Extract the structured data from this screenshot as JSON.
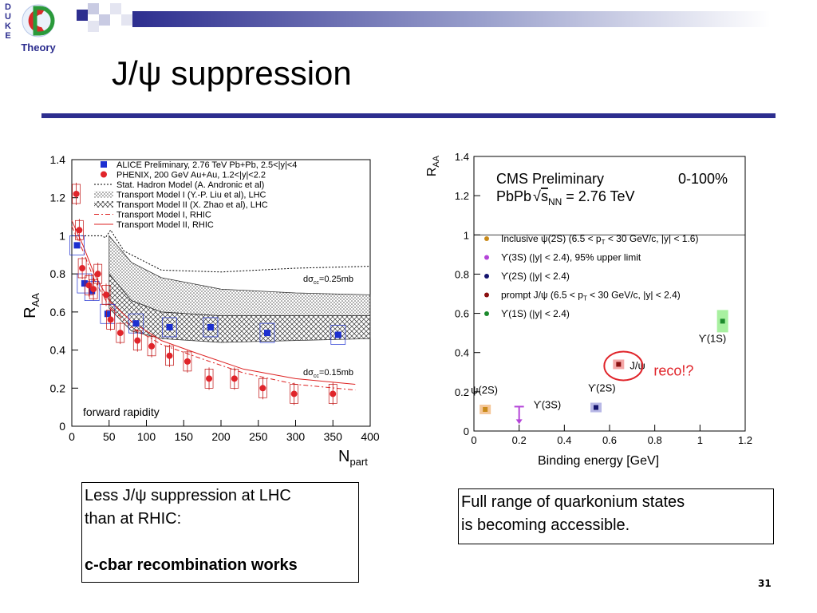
{
  "slide": {
    "logo_letters": [
      "D",
      "U",
      "K",
      "E"
    ],
    "logo_text": "Theory",
    "title": "J/ψ suppression",
    "page_number": "31",
    "accent_color": "#2d2e8f"
  },
  "left_box": {
    "line1": "Less J/ψ suppression at LHC",
    "line2": "than at RHIC:",
    "line3": "c-cbar recombination works"
  },
  "right_box": {
    "line1": "Full range of quarkonium states",
    "line2": "is becoming accessible."
  },
  "chart_data": [
    {
      "type": "scatter",
      "xlabel": "N",
      "xlabel_sub": "part",
      "ylabel": "R",
      "ylabel_sub": "AA",
      "xlim": [
        0,
        400
      ],
      "ylim": [
        0,
        1.4
      ],
      "xticks": [
        "0",
        "50",
        "100",
        "150",
        "200",
        "250",
        "300",
        "350",
        "400"
      ],
      "yticks": [
        "0",
        "0.2",
        "0.4",
        "0.6",
        "0.8",
        "1",
        "1.2",
        "1.4"
      ],
      "legend": [
        "ALICE Preliminary, 2.76 TeV Pb+Pb, 2.5<|y|<4",
        "PHENIX, 200 GeV Au+Au, 1.2<|y|<2.2",
        "Stat. Hadron Model (A. Andronic et al)",
        "Transport Model I (Y.-P. Liu et al), LHC",
        "Transport Model II (X. Zhao et al), LHC",
        "Transport Model I, RHIC",
        "Transport Model II, RHIC"
      ],
      "annotations": {
        "upper": "dσ",
        "upper_sub": "cc",
        "upper_value": "=0.25mb",
        "lower": "dσ",
        "lower_sub": "cc",
        "lower_value": "=0.15mb",
        "bottom": "forward rapidity"
      },
      "series": [
        {
          "name": "ALICE Preliminary, 2.76 TeV Pb+Pb, 2.5<|y|<4",
          "color": "#1c2fd0",
          "x": [
            7,
            17,
            27,
            48,
            86,
            131,
            186,
            262,
            357
          ],
          "y": [
            0.95,
            0.75,
            0.71,
            0.59,
            0.54,
            0.52,
            0.52,
            0.49,
            0.48
          ]
        },
        {
          "name": "PHENIX, 200 GeV Au+Au, 1.2<|y|<2.2",
          "color": "#e0242a",
          "x": [
            6,
            10,
            14,
            23,
            29,
            35,
            46,
            52,
            65,
            88,
            107,
            131,
            155,
            184,
            218,
            256,
            298,
            350
          ],
          "y": [
            1.22,
            1.03,
            0.83,
            0.74,
            0.72,
            0.8,
            0.69,
            0.56,
            0.49,
            0.45,
            0.42,
            0.37,
            0.34,
            0.25,
            0.25,
            0.2,
            0.17,
            0.17
          ]
        },
        {
          "name": "Stat. Hadron Model (A. Andronic et al)",
          "x": [
            0,
            20,
            40,
            45,
            52,
            70,
            120,
            200,
            300,
            400
          ],
          "y": [
            1.0,
            1.0,
            1.0,
            0.99,
            1.03,
            0.92,
            0.82,
            0.81,
            0.83,
            0.84
          ]
        },
        {
          "name": "Transport Model II, RHIC",
          "x": [
            0,
            15,
            30,
            50,
            80,
            120,
            170,
            230,
            300,
            380
          ],
          "y": [
            1.08,
            0.95,
            0.8,
            0.66,
            0.55,
            0.45,
            0.38,
            0.3,
            0.25,
            0.22
          ]
        },
        {
          "name": "Transport Model I, RHIC",
          "x": [
            0,
            15,
            30,
            50,
            80,
            120,
            170,
            230,
            300,
            380
          ],
          "y": [
            1.05,
            0.92,
            0.77,
            0.63,
            0.52,
            0.43,
            0.36,
            0.28,
            0.22,
            0.19
          ]
        }
      ]
    },
    {
      "type": "scatter",
      "title": "CMS Preliminary",
      "title_right": "0-100%",
      "subtitle": "PbPb",
      "subtitle_sqrt": "s",
      "subtitle_sub": "NN",
      "subtitle_value": " = 2.76 TeV",
      "xlabel": "Binding energy [GeV]",
      "ylabel": "R",
      "ylabel_sub": "AA",
      "xlim": [
        0,
        1.2
      ],
      "ylim": [
        0,
        1.4
      ],
      "xticks": [
        "0",
        "0.2",
        "0.4",
        "0.6",
        "0.8",
        "1",
        "1.2"
      ],
      "yticks": [
        "0",
        "0.2",
        "0.4",
        "0.6",
        "0.8",
        "1",
        "1.2",
        "1.4"
      ],
      "legend": [
        {
          "text": "Inclusive ψ(2S) (6.5 < p",
          "sub": "T",
          "tail": " < 30 GeV/c, |y| < 1.6)",
          "color": "#c98a1a"
        },
        {
          "text": "ϒ(3S) (|y| < 2.4), 95% upper limit",
          "sub": "",
          "tail": "",
          "color": "#b444d8"
        },
        {
          "text": "ϒ(2S) (|y| < 2.4)",
          "sub": "",
          "tail": "",
          "color": "#14146e"
        },
        {
          "text": "prompt J/ψ (6.5 < p",
          "sub": "T",
          "tail": " < 30 GeV/c, |y| < 2.4)",
          "color": "#8b1010"
        },
        {
          "text": "ϒ(1S) (|y| < 2.4)",
          "sub": "",
          "tail": "",
          "color": "#1d8a2d"
        }
      ],
      "point_labels": [
        "ψ(2S)",
        "ϒ(3S)",
        "ϒ(2S)",
        "J/ψ",
        "ϒ(1S)"
      ],
      "annotation": "reco!?",
      "annotation_color": "#e0242a",
      "points": [
        {
          "x": 0.05,
          "y": 0.11,
          "color": "#c98a1a",
          "shade": "#f5c79a"
        },
        {
          "x": 0.2,
          "y": 0.1,
          "color": "#b444d8",
          "shade": "#e6b8f5"
        },
        {
          "x": 0.54,
          "y": 0.12,
          "color": "#14146e",
          "shade": "#b8b8e6"
        },
        {
          "x": 0.64,
          "y": 0.34,
          "color": "#8b1010",
          "shade": "#f5a8a8"
        },
        {
          "x": 1.1,
          "y": 0.56,
          "color": "#1d8a2d",
          "shade": "#a8f0a0"
        }
      ]
    }
  ]
}
